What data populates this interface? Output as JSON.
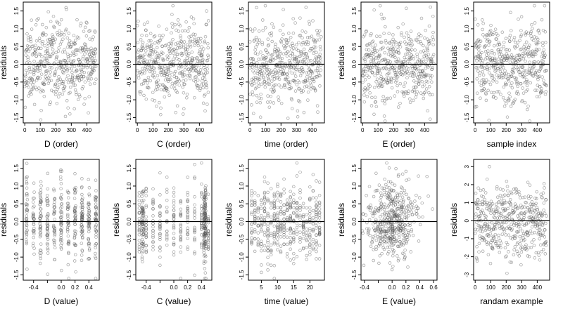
{
  "figure": {
    "n_points": 460
  },
  "chart_data": [
    {
      "type": "scatter",
      "xlabel": "D (order)",
      "ylabel": "residuals",
      "xlim": [
        -10,
        480
      ],
      "ylim": [
        -1.65,
        1.75
      ],
      "xticks": [
        0,
        100,
        200,
        300,
        400
      ],
      "yticks": [
        -1.5,
        -1,
        -0.5,
        0,
        0.5,
        1,
        1.5
      ],
      "yticklabels": [
        "-1.5",
        "-1.0",
        "-0.5",
        "0.0",
        "0.5",
        "1.0",
        "1.5"
      ],
      "reference_line": 0,
      "x_mode": "index",
      "y_mode": "residual",
      "seed": 11
    },
    {
      "type": "scatter",
      "xlabel": "C (order)",
      "ylabel": "residuals",
      "xlim": [
        -10,
        480
      ],
      "ylim": [
        -1.65,
        1.75
      ],
      "xticks": [
        0,
        100,
        200,
        300,
        400
      ],
      "yticks": [
        -1.5,
        -1,
        -0.5,
        0,
        0.5,
        1,
        1.5
      ],
      "yticklabels": [
        "-1.5",
        "-1.0",
        "-0.5",
        "0.0",
        "0.5",
        "1.0",
        "1.5"
      ],
      "reference_line": 0,
      "x_mode": "index",
      "y_mode": "residual",
      "seed": 23
    },
    {
      "type": "scatter",
      "xlabel": "time (order)",
      "ylabel": "residuals",
      "xlim": [
        -10,
        480
      ],
      "ylim": [
        -1.65,
        1.75
      ],
      "xticks": [
        0,
        100,
        200,
        300,
        400
      ],
      "yticks": [
        -1.5,
        -1,
        -0.5,
        0,
        0.5,
        1,
        1.5
      ],
      "yticklabels": [
        "-1.5",
        "-1.0",
        "-0.5",
        "0.0",
        "0.5",
        "1.0",
        "1.5"
      ],
      "reference_line": 0,
      "x_mode": "index",
      "y_mode": "residual",
      "seed": 37
    },
    {
      "type": "scatter",
      "xlabel": "E (order)",
      "ylabel": "residuals",
      "xlim": [
        -10,
        480
      ],
      "ylim": [
        -1.65,
        1.75
      ],
      "xticks": [
        0,
        100,
        200,
        300,
        400
      ],
      "yticks": [
        -1.5,
        -1,
        -0.5,
        0,
        0.5,
        1,
        1.5
      ],
      "yticklabels": [
        "-1.5",
        "-1.0",
        "-0.5",
        "0.0",
        "0.5",
        "1.0",
        "1.5"
      ],
      "reference_line": 0,
      "x_mode": "index",
      "y_mode": "residual",
      "seed": 41
    },
    {
      "type": "scatter",
      "xlabel": "sample index",
      "ylabel": "residuals",
      "xlim": [
        -10,
        480
      ],
      "ylim": [
        -1.65,
        1.75
      ],
      "xticks": [
        0,
        100,
        200,
        300,
        400
      ],
      "yticks": [
        -1.5,
        -1,
        -0.5,
        0,
        0.5,
        1,
        1.5
      ],
      "yticklabels": [
        "-1.5",
        "-1.0",
        "-0.5",
        "0.0",
        "0.5",
        "1.0",
        "1.5"
      ],
      "reference_line": 0,
      "x_mode": "index",
      "y_mode": "residual",
      "seed": 53
    },
    {
      "type": "scatter",
      "xlabel": "D (value)",
      "ylabel": "residuals",
      "xlim": [
        -0.55,
        0.55
      ],
      "ylim": [
        -1.65,
        1.75
      ],
      "xticks": [
        -0.4,
        -0.2,
        0,
        0.2,
        0.4
      ],
      "xticklabels": [
        "-0.4",
        "",
        "0.0",
        "0.2",
        "0.4"
      ],
      "yticks": [
        -1.5,
        -1,
        -0.5,
        0,
        0.5,
        1,
        1.5
      ],
      "yticklabels": [
        "-1.5",
        "-1.0",
        "-0.5",
        "0.0",
        "0.5",
        "1.0",
        "1.5"
      ],
      "reference_line": 0,
      "x_mode": "d_value",
      "y_mode": "residual",
      "seed": 61
    },
    {
      "type": "scatter",
      "xlabel": "C (value)",
      "ylabel": "residuals",
      "xlim": [
        -0.55,
        0.55
      ],
      "ylim": [
        -1.65,
        1.75
      ],
      "xticks": [
        -0.4,
        -0.2,
        0,
        0.2,
        0.4
      ],
      "xticklabels": [
        "-0.4",
        "",
        "0.0",
        "0.2",
        "0.4"
      ],
      "yticks": [
        -1.5,
        -1,
        -0.5,
        0,
        0.5,
        1,
        1.5
      ],
      "yticklabels": [
        "-1.5",
        "-1.0",
        "-0.5",
        "0.0",
        "0.5",
        "1.0",
        "1.5"
      ],
      "reference_line": 0,
      "x_mode": "c_value",
      "y_mode": "residual",
      "seed": 71
    },
    {
      "type": "scatter",
      "xlabel": "time (value)",
      "ylabel": "residuals",
      "xlim": [
        1,
        24.5
      ],
      "ylim": [
        -1.65,
        1.75
      ],
      "xticks": [
        5,
        10,
        15,
        20
      ],
      "yticks": [
        -1.5,
        -1,
        -0.5,
        0,
        0.5,
        1,
        1.5
      ],
      "yticklabels": [
        "-1.5",
        "-1.0",
        "-0.5",
        "0.0",
        "0.5",
        "1.0",
        "1.5"
      ],
      "reference_line": 0,
      "x_mode": "time_value",
      "y_mode": "residual",
      "seed": 83
    },
    {
      "type": "scatter",
      "xlabel": "E (value)",
      "ylabel": "residuals",
      "xlim": [
        -0.45,
        0.65
      ],
      "ylim": [
        -1.65,
        1.75
      ],
      "xticks": [
        -0.4,
        -0.2,
        0,
        0.2,
        0.4,
        0.6
      ],
      "xticklabels": [
        "-0.4",
        "",
        "0.0",
        "0.2",
        "0.4",
        "0.6"
      ],
      "yticks": [
        -1.5,
        -1,
        -0.5,
        0,
        0.5,
        1,
        1.5
      ],
      "yticklabels": [
        "-1.5",
        "-1.0",
        "-0.5",
        "0.0",
        "0.5",
        "1.0",
        "1.5"
      ],
      "reference_line": 0,
      "x_mode": "e_value",
      "y_mode": "residual",
      "seed": 97
    },
    {
      "type": "scatter",
      "xlabel": "randam example",
      "ylabel": "residuals",
      "xlim": [
        -10,
        480
      ],
      "ylim": [
        -3.3,
        3.4
      ],
      "xticks": [
        0,
        100,
        200,
        300,
        400
      ],
      "yticks": [
        -3,
        -2,
        -1,
        0,
        1,
        2,
        3
      ],
      "yticklabels": [
        "-3",
        "-2",
        "-1",
        "0",
        "1",
        "2",
        "3"
      ],
      "reference_line": 0,
      "x_mode": "index",
      "y_mode": "normal",
      "seed": 101
    }
  ]
}
